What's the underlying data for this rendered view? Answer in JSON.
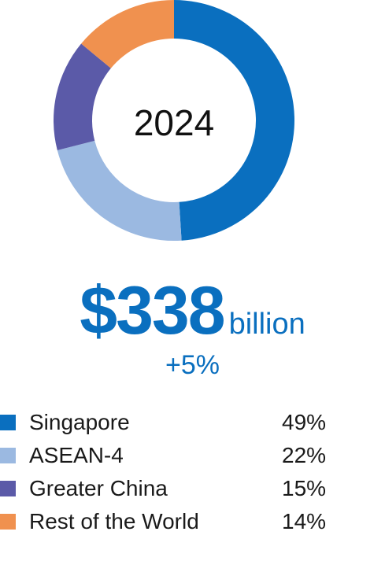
{
  "chart_data": {
    "type": "pie",
    "center_label": "2024",
    "categories": [
      "Singapore",
      "ASEAN-4",
      "Greater China",
      "Rest of the World"
    ],
    "values": [
      49,
      22,
      15,
      14
    ],
    "value_labels": [
      "49%",
      "22%",
      "15%",
      "14%"
    ],
    "colors": [
      "#0a6fbf",
      "#9bb9e1",
      "#5b5aa8",
      "#f0914f"
    ],
    "legend_position": "bottom"
  },
  "summary": {
    "amount": "$338",
    "unit": "billion",
    "change": "+5%"
  }
}
